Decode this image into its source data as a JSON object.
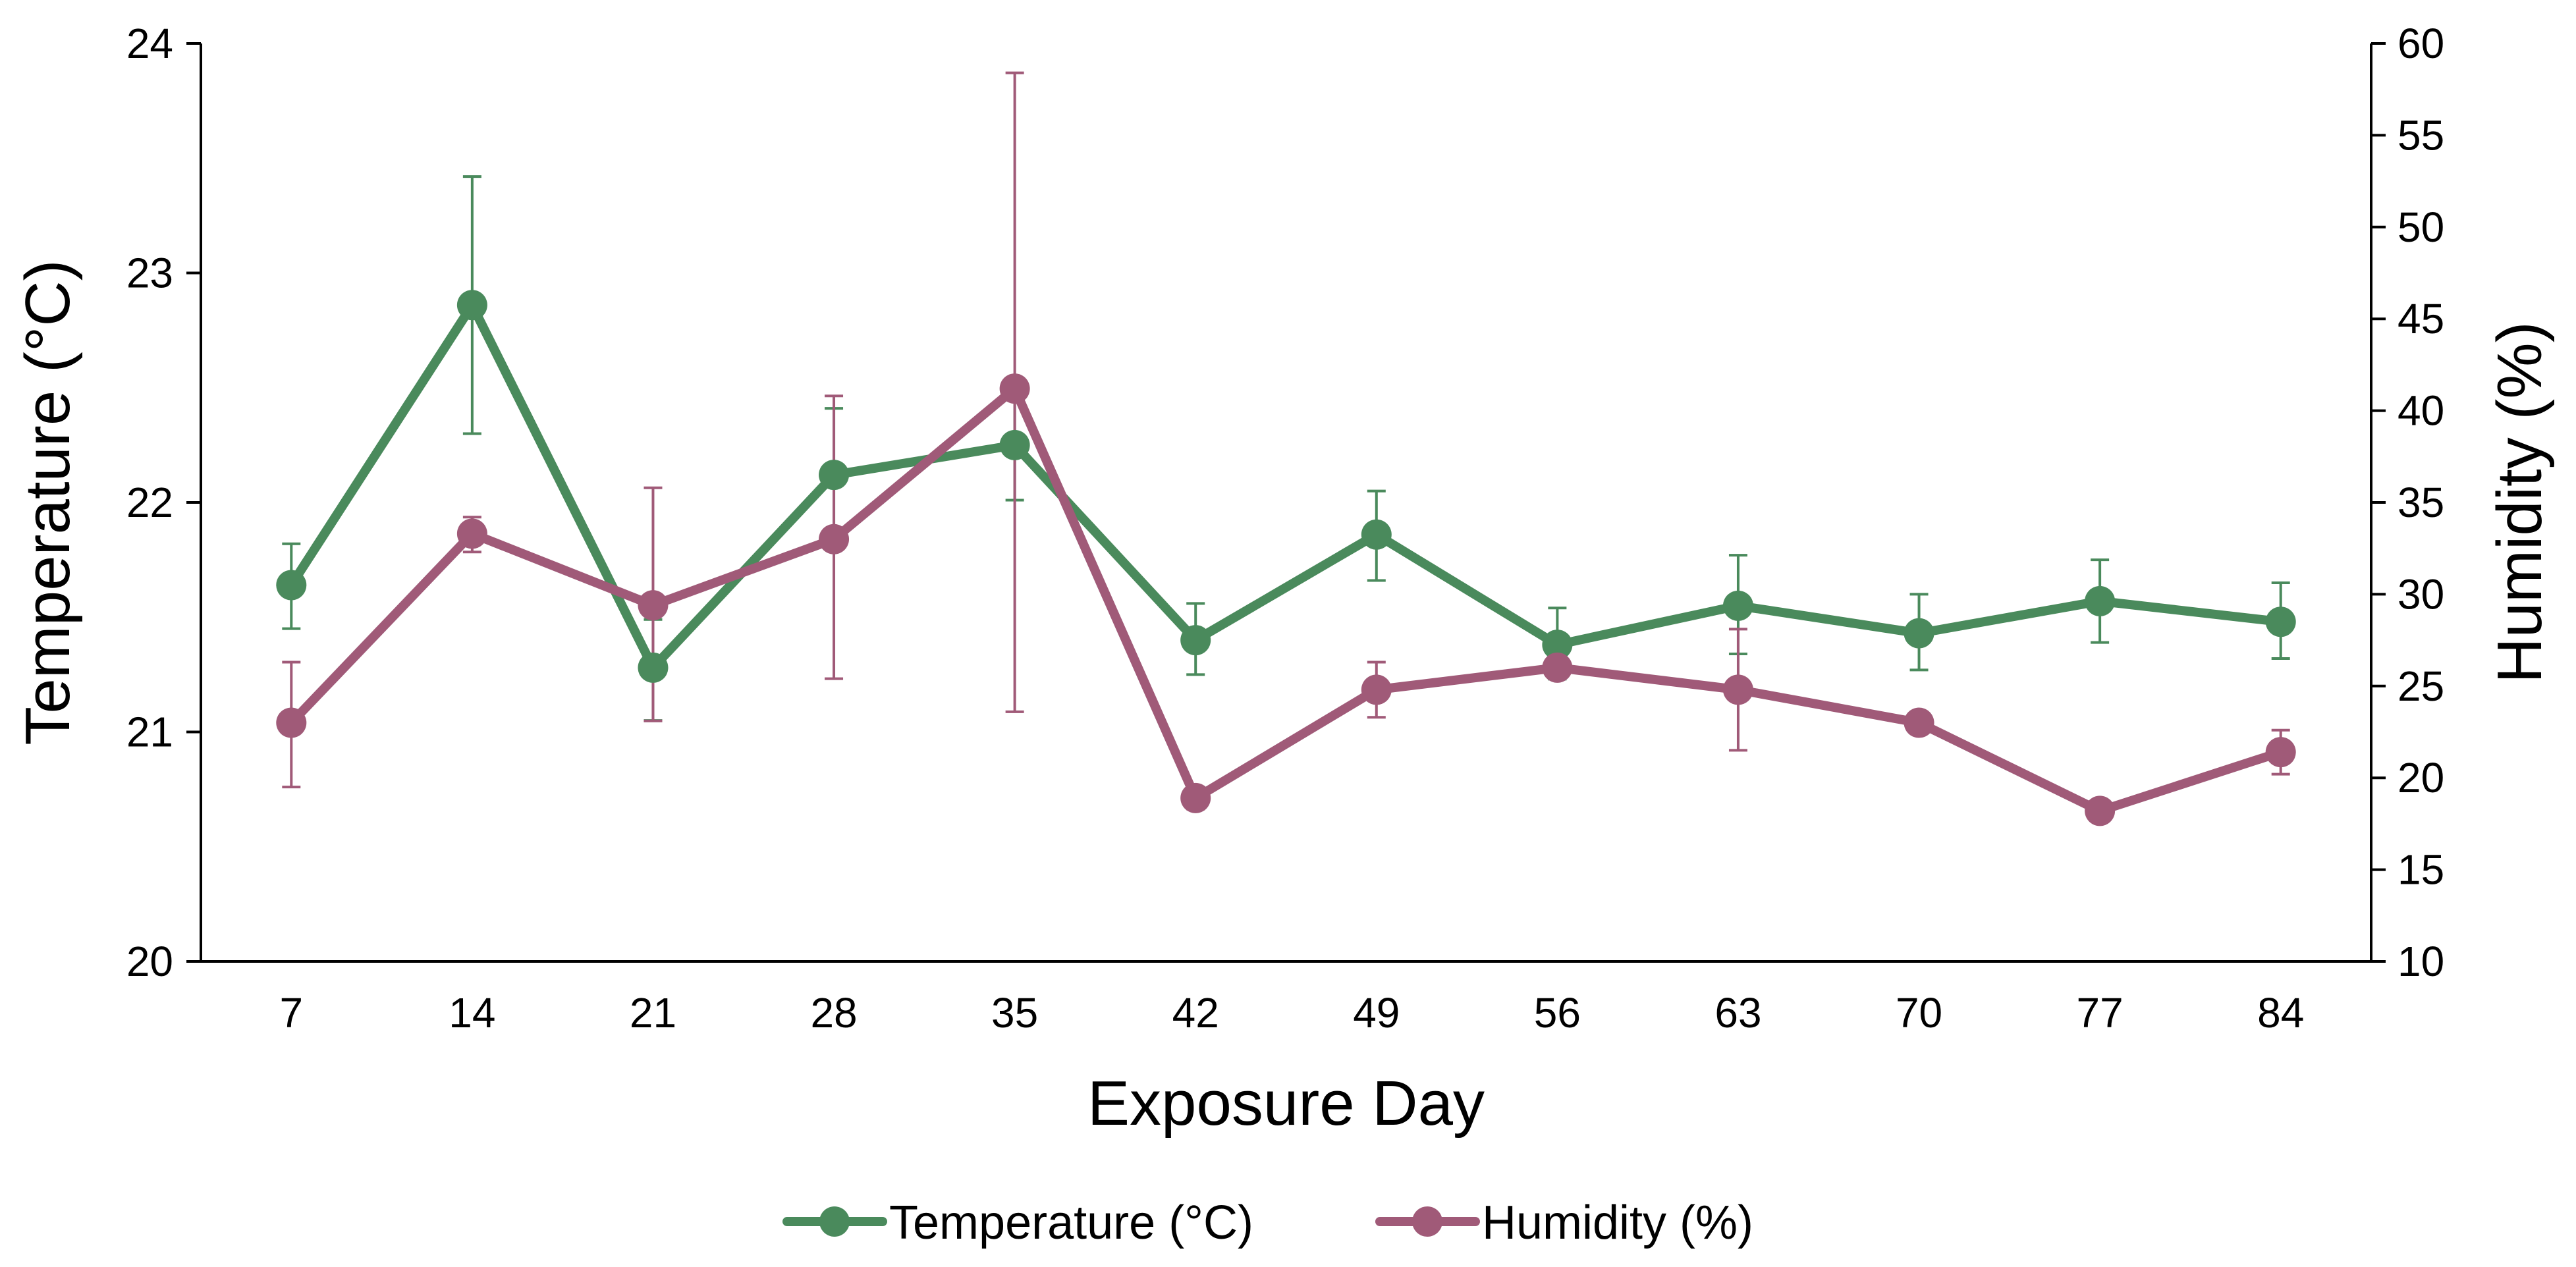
{
  "chart_data": {
    "type": "line",
    "title": "",
    "xlabel": "Exposure Day",
    "ylabel": "Temperature (°C)",
    "y2label": "Humidity (%)",
    "categories": [
      "7",
      "14",
      "21",
      "28",
      "35",
      "42",
      "49",
      "56",
      "63",
      "70",
      "77",
      "84"
    ],
    "ylim": [
      20,
      24
    ],
    "yticks": [
      "20",
      "21",
      "22",
      "23",
      "24"
    ],
    "y2lim": [
      10,
      60
    ],
    "y2ticks": [
      "10",
      "15",
      "20",
      "25",
      "30",
      "35",
      "40",
      "45",
      "50",
      "55",
      "60"
    ],
    "grid": false,
    "legend_position": "bottom-center",
    "series": [
      {
        "name": "Temperature (°C)",
        "axis": "left",
        "color": "#4a8a5c",
        "values": [
          21.64,
          22.86,
          21.28,
          22.12,
          22.25,
          21.4,
          21.86,
          21.38,
          21.55,
          21.43,
          21.57,
          21.48
        ],
        "error_upper": [
          21.82,
          23.42,
          21.49,
          22.41,
          22.5,
          21.56,
          22.05,
          21.54,
          21.77,
          21.6,
          21.75,
          21.65
        ],
        "error_lower": [
          21.45,
          22.3,
          21.05,
          21.83,
          22.01,
          21.25,
          21.66,
          21.23,
          21.34,
          21.27,
          21.39,
          21.32
        ]
      },
      {
        "name": "Humidity (%)",
        "axis": "right",
        "color": "#a05a78",
        "values": [
          23.0,
          33.3,
          29.4,
          33.0,
          41.2,
          18.9,
          24.8,
          26.0,
          24.8,
          23.0,
          18.2,
          21.4
        ],
        "error_upper": [
          26.3,
          34.2,
          35.8,
          40.8,
          58.4,
          19.5,
          26.3,
          26.5,
          28.1,
          23.5,
          18.7,
          22.6
        ],
        "error_lower": [
          19.5,
          32.3,
          23.1,
          25.4,
          23.6,
          18.3,
          23.3,
          25.5,
          21.5,
          22.5,
          17.7,
          20.2
        ]
      }
    ]
  }
}
